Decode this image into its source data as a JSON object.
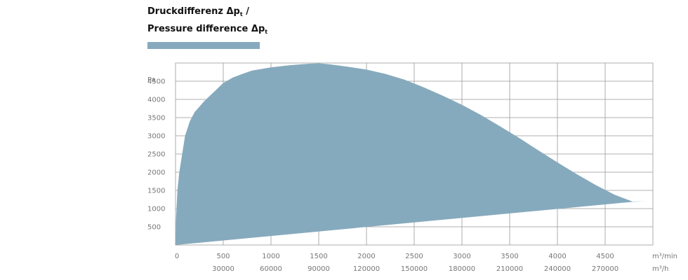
{
  "title_line1": "Druckdifferenz Δp",
  "title_line2": "Pressure difference Δp",
  "title_subscript": "t",
  "title_separator": " /",
  "colors": {
    "area": "#86aabd",
    "grid": "#999999"
  },
  "chart_data": {
    "type": "area",
    "ylabel": "Pa",
    "xunit_primary": "m³/min",
    "xunit_secondary": "m³/h",
    "xlim": [
      0,
      5000
    ],
    "ylim": [
      0,
      5000
    ],
    "grid": true,
    "yticks": [
      500,
      1000,
      1500,
      2000,
      2500,
      3000,
      3500,
      4000,
      4500
    ],
    "xticks_primary": [
      0,
      500,
      1000,
      1500,
      2000,
      2500,
      3000,
      3500,
      4000,
      4500
    ],
    "xticks_secondary": [
      {
        "at": 500,
        "label": "30000"
      },
      {
        "at": 1000,
        "label": "60000"
      },
      {
        "at": 1500,
        "label": "90000"
      },
      {
        "at": 2000,
        "label": "120000"
      },
      {
        "at": 2500,
        "label": "150000"
      },
      {
        "at": 3000,
        "label": "180000"
      },
      {
        "at": 3500,
        "label": "210000"
      },
      {
        "at": 4000,
        "label": "240000"
      },
      {
        "at": 4500,
        "label": "270000"
      }
    ],
    "series": [
      {
        "upper": [
          [
            0,
            0
          ],
          [
            5,
            700
          ],
          [
            20,
            1500
          ],
          [
            40,
            2000
          ],
          [
            70,
            2500
          ],
          [
            100,
            3000
          ],
          [
            150,
            3400
          ],
          [
            200,
            3650
          ],
          [
            300,
            3950
          ],
          [
            400,
            4200
          ],
          [
            500,
            4450
          ],
          [
            600,
            4600
          ],
          [
            700,
            4700
          ],
          [
            800,
            4790
          ],
          [
            1000,
            4880
          ],
          [
            1200,
            4940
          ],
          [
            1400,
            4980
          ],
          [
            1500,
            4990
          ],
          [
            1600,
            4970
          ],
          [
            1800,
            4900
          ],
          [
            2000,
            4820
          ],
          [
            2200,
            4700
          ],
          [
            2400,
            4540
          ],
          [
            2600,
            4330
          ],
          [
            2800,
            4100
          ],
          [
            3000,
            3850
          ],
          [
            3200,
            3570
          ],
          [
            3400,
            3260
          ],
          [
            3600,
            2940
          ],
          [
            3800,
            2600
          ],
          [
            4000,
            2270
          ],
          [
            4200,
            1950
          ],
          [
            4400,
            1650
          ],
          [
            4600,
            1380
          ],
          [
            4800,
            1180
          ],
          [
            4920,
            1220
          ]
        ],
        "lower": [
          [
            0,
            0
          ],
          [
            4920,
            1220
          ]
        ]
      }
    ]
  }
}
